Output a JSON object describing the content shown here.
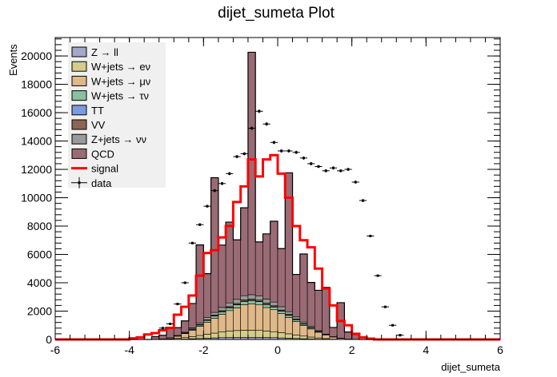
{
  "chart_data": {
    "type": "bar",
    "title": "dijet_sumeta Plot",
    "xlabel": "dijet_sumeta",
    "ylabel": "Events",
    "xlim": [
      -6,
      6
    ],
    "ylim": [
      0,
      21300
    ],
    "x_ticks": [
      "-6",
      "-4",
      "-2",
      "0",
      "2",
      "4",
      "6"
    ],
    "y_ticks": [
      "0",
      "2000",
      "4000",
      "6000",
      "8000",
      "10000",
      "12000",
      "14000",
      "16000",
      "18000",
      "20000"
    ],
    "bin_edges_start": -4.0,
    "bin_width": 0.2,
    "stack": [
      {
        "name": "Z → ll",
        "color": "#a6a6c8",
        "values": [
          0,
          0,
          0,
          0,
          0,
          10,
          20,
          30,
          50,
          70,
          90,
          110,
          130,
          140,
          150,
          150,
          150,
          150,
          140,
          130,
          110,
          90,
          70,
          50,
          30,
          20,
          10,
          0,
          0,
          0,
          0,
          0,
          0,
          0,
          0,
          0,
          0,
          0,
          0,
          0
        ]
      },
      {
        "name": "W+jets → eν",
        "color": "#d4cc8a",
        "values": [
          0,
          0,
          0,
          0,
          10,
          30,
          60,
          100,
          150,
          210,
          280,
          340,
          400,
          450,
          480,
          500,
          500,
          490,
          460,
          420,
          370,
          310,
          250,
          190,
          140,
          90,
          50,
          20,
          10,
          0,
          0,
          0,
          0,
          0,
          0,
          0,
          0,
          0,
          0,
          0
        ]
      },
      {
        "name": "W+jets → μν",
        "color": "#e0b98a",
        "values": [
          0,
          0,
          0,
          0,
          20,
          60,
          150,
          280,
          450,
          650,
          850,
          1050,
          1250,
          1450,
          1600,
          1800,
          1850,
          1800,
          1650,
          1550,
          1350,
          1150,
          950,
          750,
          570,
          400,
          260,
          150,
          70,
          30,
          0,
          0,
          0,
          0,
          0,
          0,
          0,
          0,
          0,
          0
        ]
      },
      {
        "name": "W+jets → τν",
        "color": "#88c0a0",
        "values": [
          0,
          0,
          0,
          0,
          5,
          10,
          20,
          40,
          60,
          90,
          120,
          150,
          170,
          190,
          210,
          230,
          240,
          230,
          210,
          190,
          170,
          150,
          120,
          90,
          70,
          50,
          30,
          20,
          10,
          0,
          0,
          0,
          0,
          0,
          0,
          0,
          0,
          0,
          0,
          0
        ]
      },
      {
        "name": "TT",
        "color": "#7b9be0",
        "values": [
          0,
          0,
          0,
          0,
          0,
          0,
          0,
          0,
          10,
          10,
          10,
          20,
          20,
          20,
          20,
          20,
          20,
          20,
          20,
          20,
          20,
          20,
          10,
          10,
          10,
          0,
          0,
          0,
          0,
          0,
          0,
          0,
          0,
          0,
          0,
          0,
          0,
          0,
          0,
          0
        ]
      },
      {
        "name": "VV",
        "color": "#8b6656",
        "values": [
          0,
          0,
          0,
          0,
          0,
          0,
          5,
          10,
          20,
          30,
          40,
          50,
          60,
          70,
          80,
          90,
          90,
          90,
          80,
          70,
          60,
          50,
          40,
          30,
          20,
          10,
          5,
          0,
          0,
          0,
          0,
          0,
          0,
          0,
          0,
          0,
          0,
          0,
          0,
          0
        ]
      },
      {
        "name": "Z+jets → νν",
        "color": "#9a9a9a",
        "values": [
          0,
          0,
          0,
          0,
          5,
          10,
          25,
          50,
          80,
          110,
          150,
          190,
          230,
          260,
          290,
          300,
          310,
          300,
          290,
          260,
          230,
          190,
          150,
          110,
          80,
          50,
          25,
          10,
          5,
          0,
          0,
          0,
          0,
          0,
          0,
          0,
          0,
          0,
          0,
          0
        ]
      },
      {
        "name": "QCD",
        "color": "#9a6b75",
        "values": [
          0,
          0,
          0,
          200,
          260,
          750,
          550,
          800,
          1720,
          5500,
          3100,
          9500,
          4400,
          5700,
          4200,
          6200,
          17100,
          3800,
          4600,
          5700,
          4100,
          9800,
          3000,
          4800,
          3100,
          2850,
          3300,
          650,
          2500,
          500,
          350,
          0,
          0,
          0,
          0,
          0,
          0,
          0,
          0,
          0
        ]
      }
    ],
    "signal": {
      "name": "signal",
      "color": "#ff0000",
      "values": [
        80,
        150,
        350,
        450,
        650,
        800,
        1750,
        2300,
        3100,
        4500,
        6100,
        6300,
        7200,
        8000,
        9700,
        10800,
        12700,
        11500,
        12700,
        13000,
        11700,
        10000,
        8000,
        7000,
        6500,
        5000,
        3600,
        2400,
        1300,
        1000,
        400,
        150,
        60,
        0,
        0,
        0,
        0,
        0,
        0,
        0
      ]
    },
    "data": {
      "name": "data",
      "x": [
        -3.1,
        -2.9,
        -2.7,
        -2.5,
        -2.3,
        -2.1,
        -1.9,
        -1.7,
        -1.5,
        -1.3,
        -1.1,
        -0.9,
        -0.7,
        -0.5,
        -0.3,
        -0.1,
        0.1,
        0.3,
        0.5,
        0.7,
        0.9,
        1.1,
        1.3,
        1.5,
        1.7,
        1.9,
        2.1,
        2.3,
        2.5,
        2.7,
        2.9,
        3.1,
        3.3
      ],
      "y": [
        800,
        1100,
        2500,
        4000,
        6800,
        8100,
        9400,
        10500,
        11000,
        11700,
        12900,
        13100,
        14900,
        16100,
        15200,
        13900,
        13300,
        13300,
        13200,
        12800,
        12400,
        12200,
        11900,
        12100,
        11900,
        12000,
        11100,
        9800,
        7300,
        4500,
        2300,
        1000,
        300
      ]
    },
    "legend": [
      "Z → ll",
      "W+jets → eν",
      "W+jets → μν",
      "W+jets → τν",
      "TT",
      "VV",
      "Z+jets → νν",
      "QCD",
      "signal",
      "data"
    ],
    "legend_position": "top-left",
    "grid": false
  }
}
